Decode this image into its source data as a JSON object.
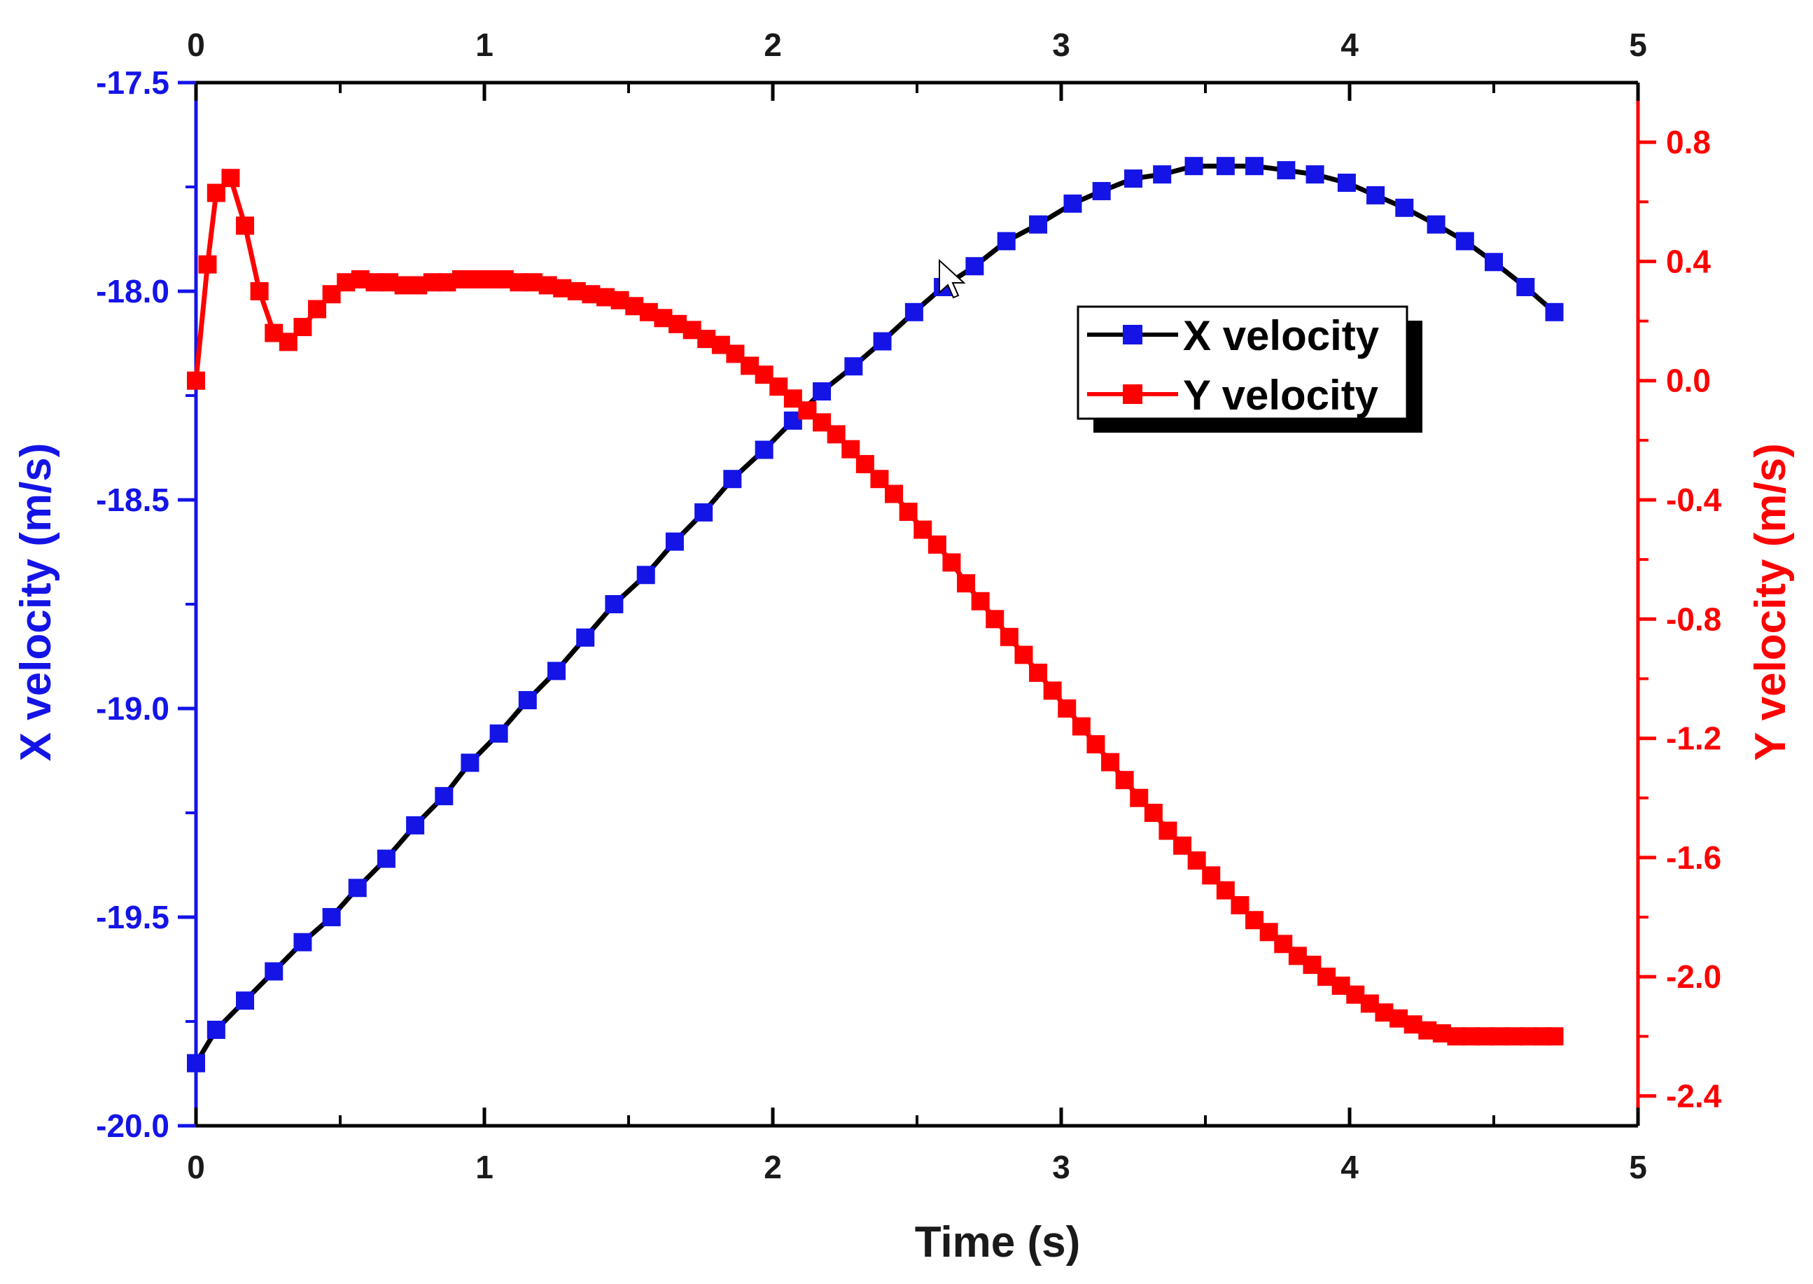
{
  "chart_data": {
    "type": "line",
    "xlabel": "Time (s)",
    "ylabel_left": "X velocity (m/s)",
    "ylabel_right": "Y velocity (m/s)",
    "xlim": [
      0,
      5
    ],
    "ylim_left": [
      -20.0,
      -17.5
    ],
    "ylim_right": [
      -2.5,
      1.0
    ],
    "x_ticks": [
      "0",
      "1",
      "2",
      "3",
      "4",
      "5"
    ],
    "top_ticks": [
      "0",
      "1",
      "2",
      "3",
      "4",
      "5"
    ],
    "left_ticks": [
      "-17.5",
      "-18.0",
      "-18.5",
      "-19.0",
      "-19.5",
      "-20.0"
    ],
    "right_ticks": [
      "0.8",
      "0.4",
      "0.0",
      "-0.4",
      "-0.8",
      "-1.2",
      "-1.6",
      "-2.0",
      "-2.4"
    ],
    "grid": false,
    "legend_position": "upper-center-right",
    "series": [
      {
        "name": "X velocity",
        "axis": "left",
        "line_color": "#000000",
        "marker_color": "#1414e6",
        "x": [
          0.0,
          0.07,
          0.17,
          0.27,
          0.37,
          0.47,
          0.56,
          0.66,
          0.76,
          0.86,
          0.95,
          1.05,
          1.15,
          1.25,
          1.35,
          1.45,
          1.56,
          1.66,
          1.76,
          1.86,
          1.97,
          2.07,
          2.17,
          2.28,
          2.38,
          2.49,
          2.59,
          2.7,
          2.81,
          2.92,
          3.04,
          3.14,
          3.25,
          3.35,
          3.46,
          3.57,
          3.67,
          3.78,
          3.88,
          3.99,
          4.09,
          4.19,
          4.3,
          4.4,
          4.5,
          4.61,
          4.71
        ],
        "values": [
          -19.85,
          -19.77,
          -19.7,
          -19.63,
          -19.56,
          -19.5,
          -19.43,
          -19.36,
          -19.28,
          -19.21,
          -19.13,
          -19.06,
          -18.98,
          -18.91,
          -18.83,
          -18.75,
          -18.68,
          -18.6,
          -18.53,
          -18.45,
          -18.38,
          -18.31,
          -18.24,
          -18.18,
          -18.12,
          -18.05,
          -17.99,
          -17.94,
          -17.88,
          -17.84,
          -17.79,
          -17.76,
          -17.73,
          -17.72,
          -17.7,
          -17.7,
          -17.7,
          -17.71,
          -17.72,
          -17.74,
          -17.77,
          -17.8,
          -17.84,
          -17.88,
          -17.93,
          -17.99,
          -18.05
        ]
      },
      {
        "name": "Y velocity",
        "axis": "right",
        "line_color": "#ff0000",
        "marker_color": "#ff0000",
        "x": [
          0.0,
          0.04,
          0.07,
          0.12,
          0.17,
          0.22,
          0.27,
          0.32,
          0.37,
          0.42,
          0.47,
          0.52,
          0.57,
          0.62,
          0.67,
          0.72,
          0.77,
          0.82,
          0.87,
          0.92,
          0.97,
          1.02,
          1.07,
          1.12,
          1.17,
          1.22,
          1.27,
          1.32,
          1.37,
          1.42,
          1.47,
          1.52,
          1.57,
          1.62,
          1.67,
          1.72,
          1.77,
          1.82,
          1.87,
          1.92,
          1.97,
          2.02,
          2.07,
          2.12,
          2.17,
          2.22,
          2.27,
          2.32,
          2.37,
          2.42,
          2.47,
          2.52,
          2.57,
          2.62,
          2.67,
          2.72,
          2.77,
          2.82,
          2.87,
          2.92,
          2.97,
          3.02,
          3.07,
          3.12,
          3.17,
          3.22,
          3.27,
          3.32,
          3.37,
          3.42,
          3.47,
          3.52,
          3.57,
          3.62,
          3.67,
          3.72,
          3.77,
          3.82,
          3.87,
          3.92,
          3.97,
          4.02,
          4.07,
          4.12,
          4.17,
          4.22,
          4.27,
          4.32,
          4.37,
          4.42,
          4.47,
          4.52,
          4.57,
          4.62,
          4.67,
          4.71
        ],
        "values": [
          0.0,
          0.39,
          0.63,
          0.68,
          0.52,
          0.3,
          0.16,
          0.13,
          0.18,
          0.24,
          0.29,
          0.33,
          0.34,
          0.33,
          0.33,
          0.32,
          0.32,
          0.33,
          0.33,
          0.34,
          0.34,
          0.34,
          0.34,
          0.33,
          0.33,
          0.32,
          0.31,
          0.3,
          0.29,
          0.28,
          0.27,
          0.25,
          0.23,
          0.21,
          0.19,
          0.17,
          0.14,
          0.12,
          0.09,
          0.05,
          0.02,
          -0.02,
          -0.06,
          -0.1,
          -0.14,
          -0.18,
          -0.23,
          -0.28,
          -0.33,
          -0.38,
          -0.44,
          -0.5,
          -0.55,
          -0.61,
          -0.68,
          -0.74,
          -0.8,
          -0.86,
          -0.92,
          -0.98,
          -1.04,
          -1.1,
          -1.16,
          -1.22,
          -1.28,
          -1.34,
          -1.4,
          -1.45,
          -1.51,
          -1.56,
          -1.61,
          -1.66,
          -1.71,
          -1.76,
          -1.81,
          -1.85,
          -1.89,
          -1.93,
          -1.96,
          -2.0,
          -2.03,
          -2.06,
          -2.09,
          -2.12,
          -2.14,
          -2.16,
          -2.18,
          -2.19,
          -2.2,
          -2.2,
          -2.2,
          -2.2,
          -2.2,
          -2.2,
          -2.2,
          -2.2
        ]
      }
    ]
  }
}
